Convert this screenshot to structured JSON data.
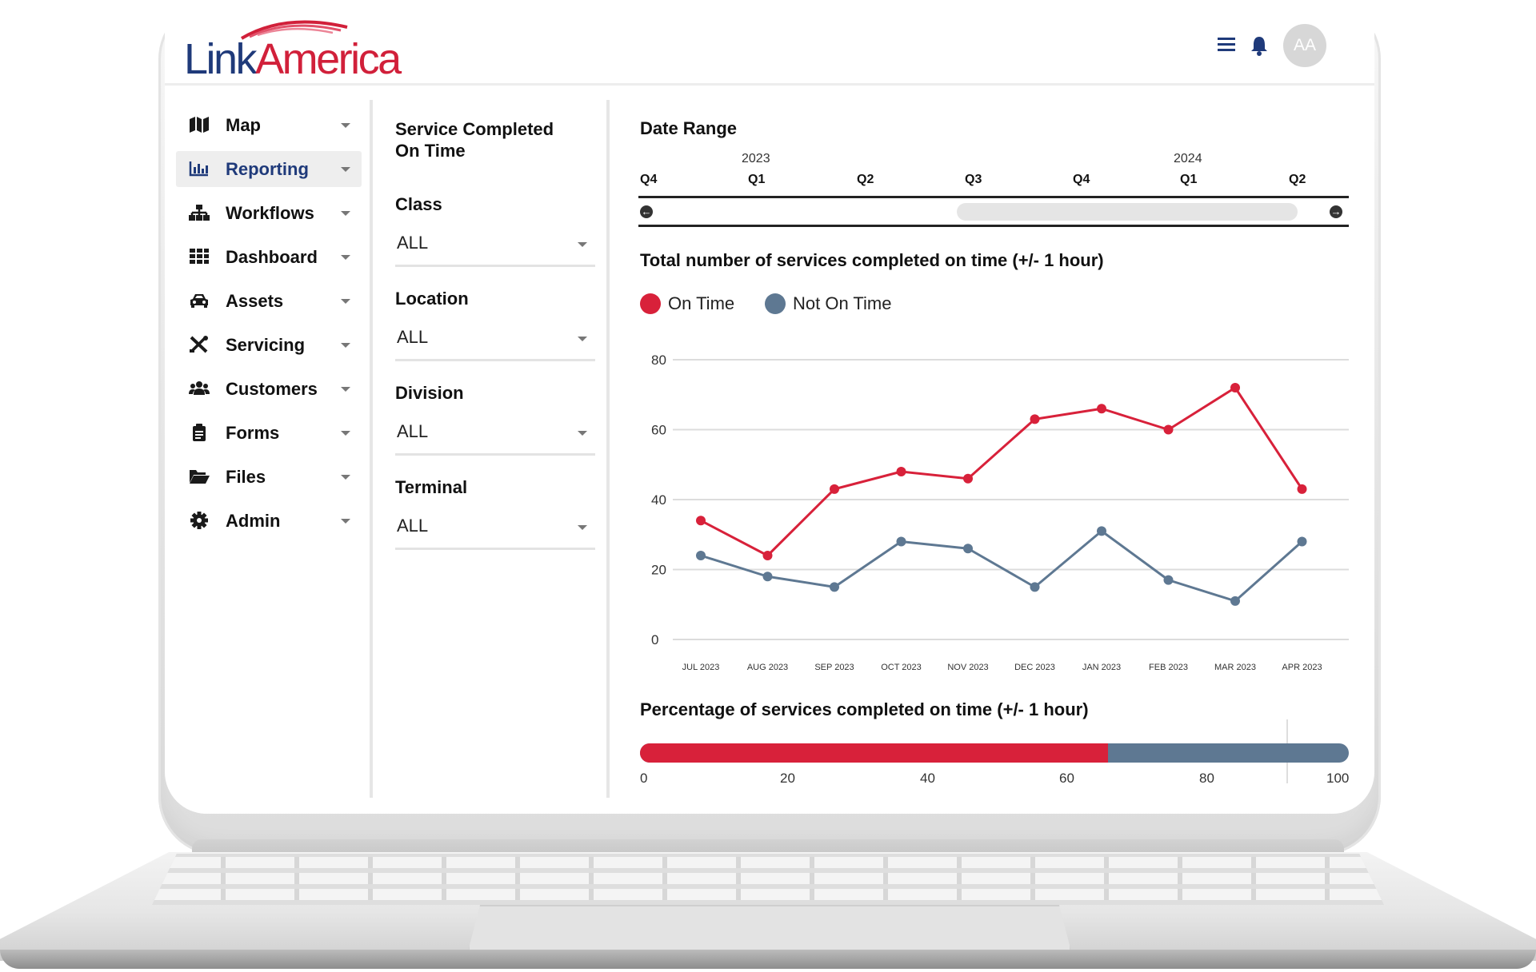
{
  "brand": {
    "logo_link": "Link",
    "logo_america": "America",
    "red": "#d1203a",
    "navy": "#1f3a7a",
    "slate": "#5e7892"
  },
  "header": {
    "avatar_initials": "AA",
    "menu_icon": "hamburger-icon",
    "bell_icon": "bell-icon"
  },
  "nav": {
    "items": [
      {
        "label": "Map",
        "icon": "map-icon"
      },
      {
        "label": "Reporting",
        "icon": "bar-chart-icon",
        "active": true
      },
      {
        "label": "Workflows",
        "icon": "sitemap-icon"
      },
      {
        "label": "Dashboard",
        "icon": "grid-icon"
      },
      {
        "label": "Assets",
        "icon": "car-icon"
      },
      {
        "label": "Servicing",
        "icon": "tools-icon"
      },
      {
        "label": "Customers",
        "icon": "users-icon"
      },
      {
        "label": "Forms",
        "icon": "clipboard-icon"
      },
      {
        "label": "Files",
        "icon": "folder-open-icon"
      },
      {
        "label": "Admin",
        "icon": "gear-icon"
      }
    ]
  },
  "filters": {
    "title": "Service Completed On Time",
    "class": {
      "label": "Class",
      "value": "ALL"
    },
    "location": {
      "label": "Location",
      "value": "ALL"
    },
    "division": {
      "label": "Division",
      "value": "ALL"
    },
    "terminal": {
      "label": "Terminal",
      "value": "ALL"
    }
  },
  "date_range": {
    "title": "Date Range",
    "years": [
      "2023",
      "2024"
    ],
    "quarters": [
      "Q4",
      "Q1",
      "Q2",
      "Q3",
      "Q4",
      "Q1",
      "Q2"
    ],
    "prev_icon": "arrow-left-circle-icon",
    "next_icon": "arrow-right-circle-icon"
  },
  "legend": {
    "on_time": "On Time",
    "not_on_time": "Not On Time"
  },
  "chart_data": [
    {
      "type": "line",
      "title": "Total number of services completed on time (+/- 1 hour)",
      "categories": [
        "JUL 2023",
        "AUG 2023",
        "SEP 2023",
        "OCT 2023",
        "NOV 2023",
        "DEC 2023",
        "JAN 2023",
        "FEB 2023",
        "MAR 2023",
        "APR  2023"
      ],
      "series": [
        {
          "name": "On Time",
          "color": "#d8213a",
          "values": [
            34,
            24,
            43,
            48,
            46,
            63,
            66,
            60,
            72,
            43
          ]
        },
        {
          "name": "Not On Time",
          "color": "#5e7892",
          "values": [
            24,
            18,
            15,
            28,
            26,
            15,
            31,
            17,
            11,
            28
          ]
        }
      ],
      "yticks": [
        0,
        20,
        40,
        60,
        80
      ],
      "ylim": [
        0,
        80
      ],
      "grid": true,
      "xlabel": "",
      "ylabel": ""
    },
    {
      "type": "bar",
      "orientation": "horizontal",
      "title": "Percentage of services completed on time (+/- 1 hour)",
      "categories": [
        "On Time",
        "Not On Time"
      ],
      "values": [
        66,
        34
      ],
      "xticks": [
        "0",
        "20",
        "40",
        "60",
        "80",
        "100"
      ],
      "xlim": [
        0,
        100
      ]
    }
  ]
}
